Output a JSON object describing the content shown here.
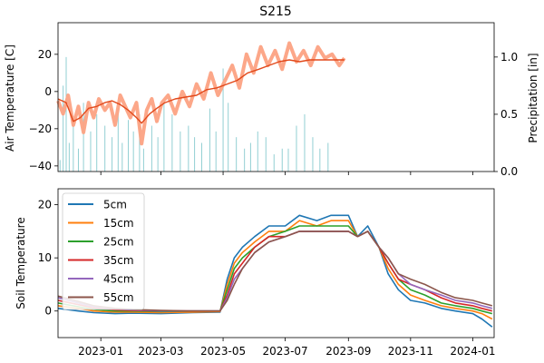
{
  "chart_data": [
    {
      "type": "line",
      "title": "S215",
      "ylabel": "Air Temperature [C]",
      "ylabel_right": "Precipitation [in]",
      "ylim": [
        -43,
        37
      ],
      "ylim_right": [
        0,
        1.3
      ],
      "xlim": [
        "2022-11-20",
        "2024-01-22"
      ],
      "yticks": [
        -40,
        -20,
        0,
        20
      ],
      "yticks_right": [
        "0.0",
        "0.5",
        "1.0"
      ],
      "grid": false,
      "series": [
        {
          "role": "air-temperature-raw",
          "color": "#fca283",
          "x": [
            "2022-11-20",
            "2022-11-25",
            "2022-11-30",
            "2022-12-05",
            "2022-12-10",
            "2022-12-15",
            "2022-12-20",
            "2022-12-25",
            "2022-12-30",
            "2023-01-05",
            "2023-01-10",
            "2023-01-15",
            "2023-01-20",
            "2023-01-25",
            "2023-01-30",
            "2023-02-05",
            "2023-02-10",
            "2023-02-15",
            "2023-02-20",
            "2023-02-25",
            "2023-03-02",
            "2023-03-08",
            "2023-03-15",
            "2023-03-22",
            "2023-03-29",
            "2023-04-05",
            "2023-04-12",
            "2023-04-19",
            "2023-04-26",
            "2023-05-03",
            "2023-05-10",
            "2023-05-17",
            "2023-05-24",
            "2023-05-31",
            "2023-06-07",
            "2023-06-14",
            "2023-06-21",
            "2023-06-28",
            "2023-07-05",
            "2023-07-12",
            "2023-07-19",
            "2023-07-26",
            "2023-08-02",
            "2023-08-09",
            "2023-08-16",
            "2023-08-23",
            "2023-08-28"
          ],
          "y": [
            -5,
            -12,
            -2,
            -18,
            -8,
            -22,
            -6,
            -14,
            -4,
            -10,
            -6,
            -18,
            -2,
            -8,
            -14,
            -6,
            -28,
            -10,
            -4,
            -16,
            -6,
            -2,
            -12,
            0,
            -8,
            4,
            -4,
            10,
            -2,
            6,
            14,
            2,
            20,
            10,
            24,
            14,
            22,
            12,
            26,
            16,
            22,
            14,
            24,
            18,
            20,
            14,
            18
          ]
        },
        {
          "role": "air-temperature-smoothed",
          "color": "#e2491b",
          "x": [
            "2022-11-20",
            "2022-11-28",
            "2022-12-05",
            "2022-12-12",
            "2022-12-20",
            "2022-12-28",
            "2023-01-05",
            "2023-01-12",
            "2023-01-20",
            "2023-01-28",
            "2023-02-05",
            "2023-02-10",
            "2023-02-18",
            "2023-02-25",
            "2023-03-05",
            "2023-03-15",
            "2023-03-25",
            "2023-04-05",
            "2023-04-15",
            "2023-04-25",
            "2023-05-05",
            "2023-05-15",
            "2023-05-25",
            "2023-06-05",
            "2023-06-15",
            "2023-06-25",
            "2023-07-05",
            "2023-07-15",
            "2023-07-25",
            "2023-08-05",
            "2023-08-15",
            "2023-08-28"
          ],
          "y": [
            -4,
            -6,
            -16,
            -14,
            -9,
            -8,
            -6,
            -5,
            -7,
            -10,
            -14,
            -17,
            -12,
            -9,
            -6,
            -4,
            -3,
            -2,
            1,
            2,
            4,
            6,
            10,
            12,
            14,
            16,
            17,
            16,
            17,
            17,
            17,
            17
          ]
        }
      ],
      "precipitation": {
        "color": "#92cfd3",
        "x": [
          "2022-11-22",
          "2022-11-25",
          "2022-11-28",
          "2022-12-01",
          "2022-12-05",
          "2022-12-10",
          "2022-12-15",
          "2022-12-22",
          "2022-12-28",
          "2023-01-05",
          "2023-01-12",
          "2023-01-18",
          "2023-01-22",
          "2023-01-28",
          "2023-02-02",
          "2023-02-08",
          "2023-02-12",
          "2023-02-20",
          "2023-02-26",
          "2023-03-04",
          "2023-03-12",
          "2023-03-20",
          "2023-03-28",
          "2023-04-03",
          "2023-04-10",
          "2023-04-18",
          "2023-04-24",
          "2023-05-01",
          "2023-05-06",
          "2023-05-14",
          "2023-05-22",
          "2023-05-28",
          "2023-06-04",
          "2023-06-12",
          "2023-06-20",
          "2023-06-28",
          "2023-07-04",
          "2023-07-12",
          "2023-07-20",
          "2023-07-28",
          "2023-08-04",
          "2023-08-12"
        ],
        "y": [
          0.1,
          0.75,
          1.0,
          0.25,
          0.45,
          0.2,
          0.6,
          0.35,
          0.5,
          0.4,
          0.3,
          0.55,
          0.25,
          0.45,
          0.35,
          0.5,
          0.2,
          0.4,
          0.3,
          0.6,
          0.5,
          0.35,
          0.4,
          0.3,
          0.25,
          0.55,
          0.35,
          0.9,
          0.6,
          0.3,
          0.2,
          0.25,
          0.35,
          0.3,
          0.15,
          0.2,
          0.2,
          0.4,
          0.5,
          0.3,
          0.2,
          0.25
        ]
      }
    },
    {
      "type": "line",
      "ylabel": "Soil Temperature",
      "ylim": [
        -5,
        23
      ],
      "xlim": [
        "2022-11-20",
        "2024-01-22"
      ],
      "yticks": [
        0,
        10,
        20
      ],
      "xticks": [
        "2023-01",
        "2023-03",
        "2023-05",
        "2023-07",
        "2023-09",
        "2023-11",
        "2024-01"
      ],
      "xtick_dates": [
        "2023-01-01",
        "2023-03-01",
        "2023-05-01",
        "2023-07-01",
        "2023-09-01",
        "2023-11-01",
        "2024-01-01"
      ],
      "legend_position": "upper-left",
      "grid": false,
      "x": [
        "2022-11-20",
        "2022-12-10",
        "2022-12-25",
        "2023-01-15",
        "2023-02-01",
        "2023-03-01",
        "2023-04-01",
        "2023-04-28",
        "2023-05-05",
        "2023-05-12",
        "2023-05-20",
        "2023-06-01",
        "2023-06-15",
        "2023-07-01",
        "2023-07-15",
        "2023-08-01",
        "2023-08-15",
        "2023-09-01",
        "2023-09-10",
        "2023-09-20",
        "2023-10-01",
        "2023-10-10",
        "2023-10-20",
        "2023-11-01",
        "2023-11-15",
        "2023-12-01",
        "2023-12-15",
        "2024-01-01",
        "2024-01-10",
        "2024-01-20"
      ],
      "series": [
        {
          "name": "5cm",
          "color": "#1f77b4",
          "y": [
            0.5,
            0.0,
            -0.3,
            -0.5,
            -0.4,
            -0.5,
            -0.3,
            -0.2,
            6,
            10,
            12,
            14,
            16,
            16,
            18,
            17,
            18,
            18,
            14,
            16,
            12,
            7,
            4,
            2,
            1.5,
            0.5,
            0.0,
            -0.5,
            -1.5,
            -3
          ]
        },
        {
          "name": "15cm",
          "color": "#ff7f0e",
          "y": [
            1.0,
            0.5,
            0.0,
            -0.2,
            -0.2,
            -0.3,
            -0.2,
            -0.1,
            5,
            9,
            11,
            13,
            15,
            15,
            17,
            16,
            17,
            17,
            14,
            15,
            12,
            8,
            5,
            3,
            2,
            1.0,
            0.5,
            0.0,
            -0.5,
            -1.5
          ]
        },
        {
          "name": "25cm",
          "color": "#2ca02c",
          "y": [
            1.5,
            0.8,
            0.3,
            0.0,
            0.0,
            -0.1,
            0.0,
            0.0,
            4,
            8,
            10,
            12,
            14,
            15,
            16,
            16,
            16,
            16,
            14,
            15,
            12,
            9,
            6,
            4,
            3,
            1.5,
            1.0,
            0.5,
            0.0,
            -0.5
          ]
        },
        {
          "name": "35cm",
          "color": "#d62728",
          "y": [
            2.0,
            1.2,
            0.6,
            0.2,
            0.1,
            0.0,
            0.0,
            0.0,
            3,
            7,
            9,
            12,
            14,
            14,
            15,
            15,
            15,
            15,
            14,
            15,
            12,
            9,
            6,
            5,
            4,
            2.5,
            1.5,
            1.0,
            0.5,
            0.0
          ]
        },
        {
          "name": "45cm",
          "color": "#9467bd",
          "y": [
            2.5,
            1.5,
            0.8,
            0.4,
            0.2,
            0.0,
            0.0,
            0.0,
            2.5,
            6,
            8,
            11,
            13,
            14,
            15,
            15,
            15,
            15,
            14,
            15,
            12,
            10,
            7,
            5,
            4,
            3,
            2,
            1.5,
            1.0,
            0.5
          ]
        },
        {
          "name": "55cm",
          "color": "#8c564b",
          "y": [
            2.8,
            1.8,
            1.0,
            0.5,
            0.3,
            0.1,
            0.0,
            0.0,
            2,
            5,
            8,
            11,
            13,
            14,
            15,
            15,
            15,
            15,
            14,
            15,
            12,
            10,
            7,
            6,
            5,
            3.5,
            2.5,
            2,
            1.5,
            1.0
          ]
        }
      ]
    }
  ]
}
